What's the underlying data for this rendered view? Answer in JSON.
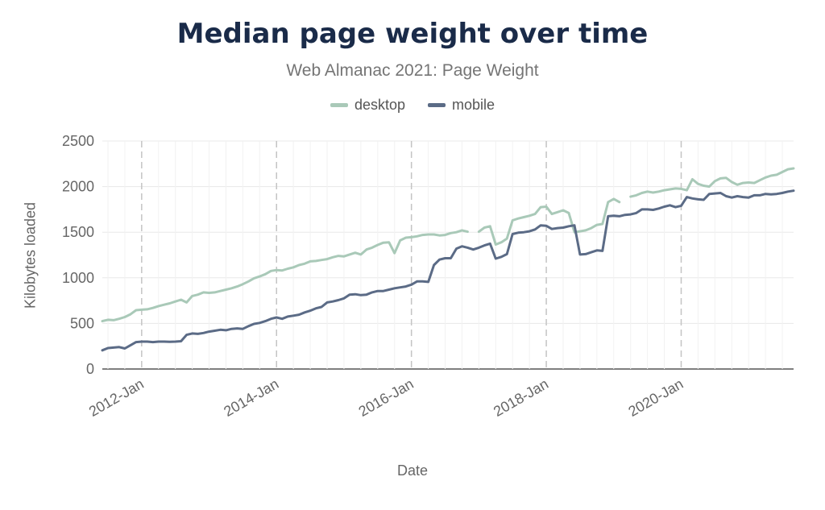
{
  "chart_data": {
    "type": "line",
    "title": "Median page weight over time",
    "subtitle": "Web Almanac 2021: Page Weight",
    "xlabel": "Date",
    "ylabel": "Kilobytes loaded",
    "ylim": [
      0,
      2500
    ],
    "xlim": [
      "2011-06",
      "2021-09"
    ],
    "y_ticks": [
      0,
      500,
      1000,
      1500,
      2000,
      2500
    ],
    "x_ticks": [
      {
        "date": "2012-01",
        "label": "2012-Jan"
      },
      {
        "date": "2014-01",
        "label": "2014-Jan"
      },
      {
        "date": "2016-01",
        "label": "2016-Jan"
      },
      {
        "date": "2018-01",
        "label": "2018-Jan"
      },
      {
        "date": "2020-01",
        "label": "2020-Jan"
      }
    ],
    "grid": true,
    "legend_position": "top-center",
    "series": [
      {
        "name": "desktop",
        "color": "#a9c9b8",
        "points": [
          [
            "2011-06",
            525
          ],
          [
            "2011-07",
            540
          ],
          [
            "2011-08",
            535
          ],
          [
            "2011-09",
            550
          ],
          [
            "2011-10",
            570
          ],
          [
            "2011-11",
            600
          ],
          [
            "2011-12",
            645
          ],
          [
            "2012-01",
            650
          ],
          [
            "2012-02",
            655
          ],
          [
            "2012-03",
            670
          ],
          [
            "2012-04",
            690
          ],
          [
            "2012-05",
            705
          ],
          [
            "2012-06",
            720
          ],
          [
            "2012-07",
            740
          ],
          [
            "2012-08",
            760
          ],
          [
            "2012-09",
            730
          ],
          [
            "2012-10",
            800
          ],
          [
            "2012-11",
            815
          ],
          [
            "2012-12",
            840
          ],
          [
            "2013-01",
            835
          ],
          [
            "2013-02",
            840
          ],
          [
            "2013-03",
            855
          ],
          [
            "2013-04",
            870
          ],
          [
            "2013-05",
            885
          ],
          [
            "2013-06",
            905
          ],
          [
            "2013-07",
            930
          ],
          [
            "2013-08",
            960
          ],
          [
            "2013-09",
            995
          ],
          [
            "2013-10",
            1015
          ],
          [
            "2013-11",
            1040
          ],
          [
            "2013-12",
            1075
          ],
          [
            "2014-01",
            1085
          ],
          [
            "2014-02",
            1080
          ],
          [
            "2014-03",
            1100
          ],
          [
            "2014-04",
            1115
          ],
          [
            "2014-05",
            1140
          ],
          [
            "2014-06",
            1155
          ],
          [
            "2014-07",
            1180
          ],
          [
            "2014-08",
            1185
          ],
          [
            "2014-09",
            1195
          ],
          [
            "2014-10",
            1205
          ],
          [
            "2014-11",
            1225
          ],
          [
            "2014-12",
            1240
          ],
          [
            "2015-01",
            1235
          ],
          [
            "2015-02",
            1255
          ],
          [
            "2015-03",
            1275
          ],
          [
            "2015-04",
            1255
          ],
          [
            "2015-05",
            1310
          ],
          [
            "2015-06",
            1330
          ],
          [
            "2015-07",
            1360
          ],
          [
            "2015-08",
            1385
          ],
          [
            "2015-09",
            1390
          ],
          [
            "2015-10",
            1270
          ],
          [
            "2015-11",
            1410
          ],
          [
            "2015-12",
            1440
          ],
          [
            "2016-01",
            1445
          ],
          [
            "2016-02",
            1455
          ],
          [
            "2016-03",
            1470
          ],
          [
            "2016-04",
            1475
          ],
          [
            "2016-05",
            1475
          ],
          [
            "2016-06",
            1465
          ],
          [
            "2016-07",
            1470
          ],
          [
            "2016-08",
            1490
          ],
          [
            "2016-09",
            1500
          ],
          [
            "2016-10",
            1520
          ],
          [
            "2016-11",
            1505
          ],
          null,
          [
            "2017-01",
            1505
          ],
          [
            "2017-02",
            1550
          ],
          [
            "2017-03",
            1565
          ],
          [
            "2017-04",
            1365
          ],
          [
            "2017-05",
            1390
          ],
          [
            "2017-06",
            1430
          ],
          [
            "2017-07",
            1630
          ],
          [
            "2017-08",
            1650
          ],
          [
            "2017-09",
            1665
          ],
          [
            "2017-10",
            1680
          ],
          [
            "2017-11",
            1700
          ],
          [
            "2017-12",
            1775
          ],
          [
            "2018-01",
            1780
          ],
          [
            "2018-02",
            1700
          ],
          [
            "2018-03",
            1720
          ],
          [
            "2018-04",
            1740
          ],
          [
            "2018-05",
            1710
          ],
          [
            "2018-06",
            1500
          ],
          [
            "2018-07",
            1510
          ],
          [
            "2018-08",
            1520
          ],
          [
            "2018-09",
            1545
          ],
          [
            "2018-10",
            1580
          ],
          [
            "2018-11",
            1590
          ],
          [
            "2018-12",
            1830
          ],
          [
            "2019-01",
            1865
          ],
          [
            "2019-02",
            1830
          ],
          null,
          [
            "2019-04",
            1890
          ],
          [
            "2019-05",
            1905
          ],
          [
            "2019-06",
            1930
          ],
          [
            "2019-07",
            1945
          ],
          [
            "2019-08",
            1935
          ],
          [
            "2019-09",
            1945
          ],
          [
            "2019-10",
            1960
          ],
          [
            "2019-11",
            1970
          ],
          [
            "2019-12",
            1980
          ],
          [
            "2020-01",
            1975
          ],
          [
            "2020-02",
            1960
          ],
          [
            "2020-03",
            2080
          ],
          [
            "2020-04",
            2030
          ],
          [
            "2020-05",
            2010
          ],
          [
            "2020-06",
            2000
          ],
          [
            "2020-07",
            2060
          ],
          [
            "2020-08",
            2090
          ],
          [
            "2020-09",
            2095
          ],
          [
            "2020-10",
            2050
          ],
          [
            "2020-11",
            2020
          ],
          [
            "2020-12",
            2040
          ],
          [
            "2021-01",
            2045
          ],
          [
            "2021-02",
            2040
          ],
          [
            "2021-03",
            2070
          ],
          [
            "2021-04",
            2100
          ],
          [
            "2021-05",
            2120
          ],
          [
            "2021-06",
            2130
          ],
          [
            "2021-07",
            2160
          ],
          [
            "2021-08",
            2190
          ],
          [
            "2021-09",
            2200
          ]
        ]
      },
      {
        "name": "mobile",
        "color": "#5b6b86",
        "points": [
          [
            "2011-06",
            205
          ],
          [
            "2011-07",
            230
          ],
          [
            "2011-08",
            235
          ],
          [
            "2011-09",
            240
          ],
          [
            "2011-10",
            225
          ],
          [
            "2011-11",
            260
          ],
          [
            "2011-12",
            295
          ],
          [
            "2012-01",
            300
          ],
          [
            "2012-02",
            300
          ],
          [
            "2012-03",
            295
          ],
          [
            "2012-04",
            300
          ],
          [
            "2012-05",
            300
          ],
          [
            "2012-06",
            298
          ],
          [
            "2012-07",
            300
          ],
          [
            "2012-08",
            305
          ],
          [
            "2012-09",
            375
          ],
          [
            "2012-10",
            390
          ],
          [
            "2012-11",
            385
          ],
          [
            "2012-12",
            395
          ],
          [
            "2013-01",
            410
          ],
          [
            "2013-02",
            420
          ],
          [
            "2013-03",
            430
          ],
          [
            "2013-04",
            425
          ],
          [
            "2013-05",
            440
          ],
          [
            "2013-06",
            445
          ],
          [
            "2013-07",
            440
          ],
          [
            "2013-08",
            470
          ],
          [
            "2013-09",
            495
          ],
          [
            "2013-10",
            505
          ],
          [
            "2013-11",
            525
          ],
          [
            "2013-12",
            550
          ],
          [
            "2014-01",
            565
          ],
          [
            "2014-02",
            550
          ],
          [
            "2014-03",
            575
          ],
          [
            "2014-04",
            585
          ],
          [
            "2014-05",
            595
          ],
          [
            "2014-06",
            620
          ],
          [
            "2014-07",
            640
          ],
          [
            "2014-08",
            665
          ],
          [
            "2014-09",
            680
          ],
          [
            "2014-10",
            730
          ],
          [
            "2014-11",
            740
          ],
          [
            "2014-12",
            755
          ],
          [
            "2015-01",
            775
          ],
          [
            "2015-02",
            815
          ],
          [
            "2015-03",
            820
          ],
          [
            "2015-04",
            810
          ],
          [
            "2015-05",
            815
          ],
          [
            "2015-06",
            840
          ],
          [
            "2015-07",
            855
          ],
          [
            "2015-08",
            855
          ],
          [
            "2015-09",
            870
          ],
          [
            "2015-10",
            885
          ],
          [
            "2015-11",
            895
          ],
          [
            "2015-12",
            905
          ],
          [
            "2016-01",
            925
          ],
          [
            "2016-02",
            960
          ],
          [
            "2016-03",
            960
          ],
          [
            "2016-04",
            955
          ],
          [
            "2016-05",
            1140
          ],
          [
            "2016-06",
            1200
          ],
          [
            "2016-07",
            1215
          ],
          [
            "2016-08",
            1215
          ],
          [
            "2016-09",
            1320
          ],
          [
            "2016-10",
            1345
          ],
          [
            "2016-11",
            1330
          ],
          [
            "2016-12",
            1310
          ],
          [
            "2017-01",
            1330
          ],
          [
            "2017-02",
            1355
          ],
          [
            "2017-03",
            1375
          ],
          [
            "2017-04",
            1210
          ],
          [
            "2017-05",
            1230
          ],
          [
            "2017-06",
            1260
          ],
          [
            "2017-07",
            1480
          ],
          [
            "2017-08",
            1495
          ],
          [
            "2017-09",
            1500
          ],
          [
            "2017-10",
            1510
          ],
          [
            "2017-11",
            1530
          ],
          [
            "2017-12",
            1575
          ],
          [
            "2018-01",
            1570
          ],
          [
            "2018-02",
            1535
          ],
          [
            "2018-03",
            1545
          ],
          [
            "2018-04",
            1550
          ],
          [
            "2018-05",
            1565
          ],
          [
            "2018-06",
            1575
          ],
          [
            "2018-07",
            1255
          ],
          [
            "2018-08",
            1260
          ],
          [
            "2018-09",
            1280
          ],
          [
            "2018-10",
            1300
          ],
          [
            "2018-11",
            1295
          ],
          [
            "2018-12",
            1675
          ],
          [
            "2019-01",
            1680
          ],
          [
            "2019-02",
            1675
          ],
          [
            "2019-03",
            1690
          ],
          [
            "2019-04",
            1695
          ],
          [
            "2019-05",
            1710
          ],
          [
            "2019-06",
            1750
          ],
          [
            "2019-07",
            1750
          ],
          [
            "2019-08",
            1745
          ],
          [
            "2019-09",
            1760
          ],
          [
            "2019-10",
            1780
          ],
          [
            "2019-11",
            1795
          ],
          [
            "2019-12",
            1775
          ],
          [
            "2020-01",
            1790
          ],
          [
            "2020-02",
            1885
          ],
          [
            "2020-03",
            1870
          ],
          [
            "2020-04",
            1860
          ],
          [
            "2020-05",
            1855
          ],
          [
            "2020-06",
            1920
          ],
          [
            "2020-07",
            1925
          ],
          [
            "2020-08",
            1930
          ],
          [
            "2020-09",
            1895
          ],
          [
            "2020-10",
            1880
          ],
          [
            "2020-11",
            1895
          ],
          [
            "2020-12",
            1885
          ],
          [
            "2021-01",
            1880
          ],
          [
            "2021-02",
            1905
          ],
          [
            "2021-03",
            1905
          ],
          [
            "2021-04",
            1920
          ],
          [
            "2021-05",
            1915
          ],
          [
            "2021-06",
            1920
          ],
          [
            "2021-07",
            1930
          ],
          [
            "2021-08",
            1945
          ],
          [
            "2021-09",
            1955
          ]
        ]
      }
    ]
  }
}
